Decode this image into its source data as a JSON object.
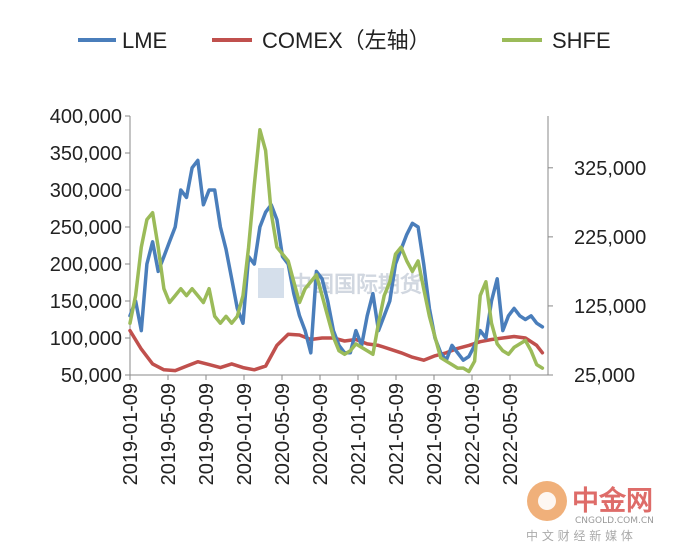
{
  "chart_data": {
    "type": "line",
    "legend": {
      "placement": "top",
      "items": [
        "LME",
        "COMEX（左轴）",
        "SHFE"
      ]
    },
    "x_tick_labels": [
      "2019-01-09",
      "2019-05-09",
      "2019-09-09",
      "2020-01-09",
      "2020-05-09",
      "2020-09-09",
      "2021-01-09",
      "2021-05-09",
      "2021-09-09",
      "2022-01-09",
      "2022-05-09"
    ],
    "left_axis": {
      "ylim": [
        50000,
        400000
      ],
      "tick_values": [
        50000,
        100000,
        150000,
        200000,
        250000,
        300000,
        350000,
        400000
      ],
      "tick_labels": [
        "50,000",
        "100,000",
        "150,000",
        "200,000",
        "250,000",
        "300,000",
        "350,000",
        "400,000"
      ]
    },
    "right_axis": {
      "ylim": [
        25000,
        400000
      ],
      "tick_values": [
        25000,
        125000,
        225000,
        325000
      ],
      "tick_labels": [
        "25,000",
        "125,000",
        "225,000",
        "325,000"
      ]
    },
    "series": [
      {
        "name": "LME",
        "axis": "left",
        "color": "#4a7ebb",
        "x": [
          2019.0,
          2019.05,
          2019.1,
          2019.15,
          2019.2,
          2019.25,
          2019.3,
          2019.35,
          2019.4,
          2019.45,
          2019.5,
          2019.55,
          2019.6,
          2019.65,
          2019.7,
          2019.75,
          2019.8,
          2019.85,
          2019.9,
          2019.95,
          2020.0,
          2020.05,
          2020.1,
          2020.15,
          2020.2,
          2020.25,
          2020.3,
          2020.35,
          2020.4,
          2020.45,
          2020.5,
          2020.55,
          2020.6,
          2020.65,
          2020.7,
          2020.75,
          2020.8,
          2020.85,
          2020.9,
          2020.95,
          2021.0,
          2021.05,
          2021.1,
          2021.15,
          2021.2,
          2021.25,
          2021.3,
          2021.35,
          2021.4,
          2021.45,
          2021.5,
          2021.55,
          2021.6,
          2021.65,
          2021.7,
          2021.75,
          2021.8,
          2021.85,
          2021.9,
          2021.95,
          2022.0,
          2022.05,
          2022.1,
          2022.15,
          2022.2,
          2022.25,
          2022.3,
          2022.35,
          2022.4,
          2022.45,
          2022.5,
          2022.55,
          2022.6,
          2022.65
        ],
        "values": [
          130000,
          150000,
          110000,
          200000,
          230000,
          190000,
          210000,
          230000,
          250000,
          300000,
          290000,
          330000,
          340000,
          280000,
          300000,
          300000,
          250000,
          220000,
          180000,
          140000,
          120000,
          210000,
          200000,
          250000,
          270000,
          280000,
          260000,
          210000,
          200000,
          160000,
          130000,
          110000,
          80000,
          190000,
          180000,
          150000,
          110000,
          90000,
          80000,
          80000,
          110000,
          90000,
          130000,
          160000,
          110000,
          130000,
          150000,
          200000,
          220000,
          240000,
          255000,
          250000,
          200000,
          140000,
          100000,
          80000,
          70000,
          90000,
          80000,
          70000,
          75000,
          90000,
          110000,
          100000,
          150000,
          180000,
          110000,
          130000,
          140000,
          130000,
          125000,
          130000,
          120000,
          115000
        ]
      },
      {
        "name": "COMEX（左轴）",
        "axis": "left",
        "color": "#c0504d",
        "x": [
          2019.0,
          2019.1,
          2019.2,
          2019.3,
          2019.4,
          2019.5,
          2019.6,
          2019.7,
          2019.8,
          2019.9,
          2020.0,
          2020.1,
          2020.2,
          2020.3,
          2020.4,
          2020.5,
          2020.6,
          2020.7,
          2020.8,
          2020.9,
          2021.0,
          2021.1,
          2021.2,
          2021.3,
          2021.4,
          2021.5,
          2021.6,
          2021.7,
          2021.8,
          2021.9,
          2022.0,
          2022.1,
          2022.2,
          2022.3,
          2022.4,
          2022.5,
          2022.6,
          2022.65
        ],
        "values": [
          110000,
          85000,
          65000,
          57000,
          56000,
          62000,
          68000,
          64000,
          60000,
          65000,
          60000,
          57000,
          62000,
          90000,
          105000,
          104000,
          98000,
          100000,
          100000,
          96000,
          98000,
          92000,
          90000,
          85000,
          80000,
          74000,
          70000,
          76000,
          80000,
          86000,
          90000,
          95000,
          98000,
          100000,
          102000,
          100000,
          90000,
          80000
        ]
      },
      {
        "name": "SHFE",
        "axis": "right",
        "color": "#9bbb59",
        "x": [
          2019.0,
          2019.05,
          2019.1,
          2019.15,
          2019.2,
          2019.25,
          2019.3,
          2019.35,
          2019.4,
          2019.45,
          2019.5,
          2019.55,
          2019.6,
          2019.65,
          2019.7,
          2019.75,
          2019.8,
          2019.85,
          2019.9,
          2019.95,
          2020.0,
          2020.05,
          2020.1,
          2020.15,
          2020.2,
          2020.25,
          2020.3,
          2020.35,
          2020.4,
          2020.45,
          2020.5,
          2020.55,
          2020.6,
          2020.65,
          2020.7,
          2020.75,
          2020.8,
          2020.85,
          2020.9,
          2020.95,
          2021.0,
          2021.05,
          2021.1,
          2021.15,
          2021.2,
          2021.25,
          2021.3,
          2021.35,
          2021.4,
          2021.45,
          2021.5,
          2021.55,
          2021.6,
          2021.65,
          2021.7,
          2021.75,
          2021.8,
          2021.85,
          2021.9,
          2021.95,
          2022.0,
          2022.05,
          2022.1,
          2022.15,
          2022.2,
          2022.25,
          2022.3,
          2022.35,
          2022.4,
          2022.45,
          2022.5,
          2022.55,
          2022.6,
          2022.65
        ],
        "values": [
          100000,
          140000,
          210000,
          250000,
          260000,
          210000,
          150000,
          130000,
          140000,
          150000,
          140000,
          150000,
          140000,
          130000,
          150000,
          110000,
          100000,
          110000,
          100000,
          110000,
          140000,
          210000,
          300000,
          380000,
          350000,
          260000,
          210000,
          200000,
          190000,
          160000,
          130000,
          150000,
          160000,
          170000,
          140000,
          110000,
          80000,
          60000,
          55000,
          60000,
          70000,
          65000,
          60000,
          55000,
          100000,
          140000,
          160000,
          200000,
          210000,
          190000,
          175000,
          190000,
          150000,
          110000,
          80000,
          50000,
          45000,
          40000,
          35000,
          35000,
          30000,
          45000,
          140000,
          160000,
          100000,
          70000,
          60000,
          55000,
          65000,
          70000,
          75000,
          60000,
          40000,
          35000
        ]
      }
    ]
  },
  "watermark": {
    "center_text": "中国国际期货",
    "brand": "中金网",
    "domain": "CNGOLD.COM.CN",
    "tagline": "中 文 财 经 新 媒 体"
  }
}
